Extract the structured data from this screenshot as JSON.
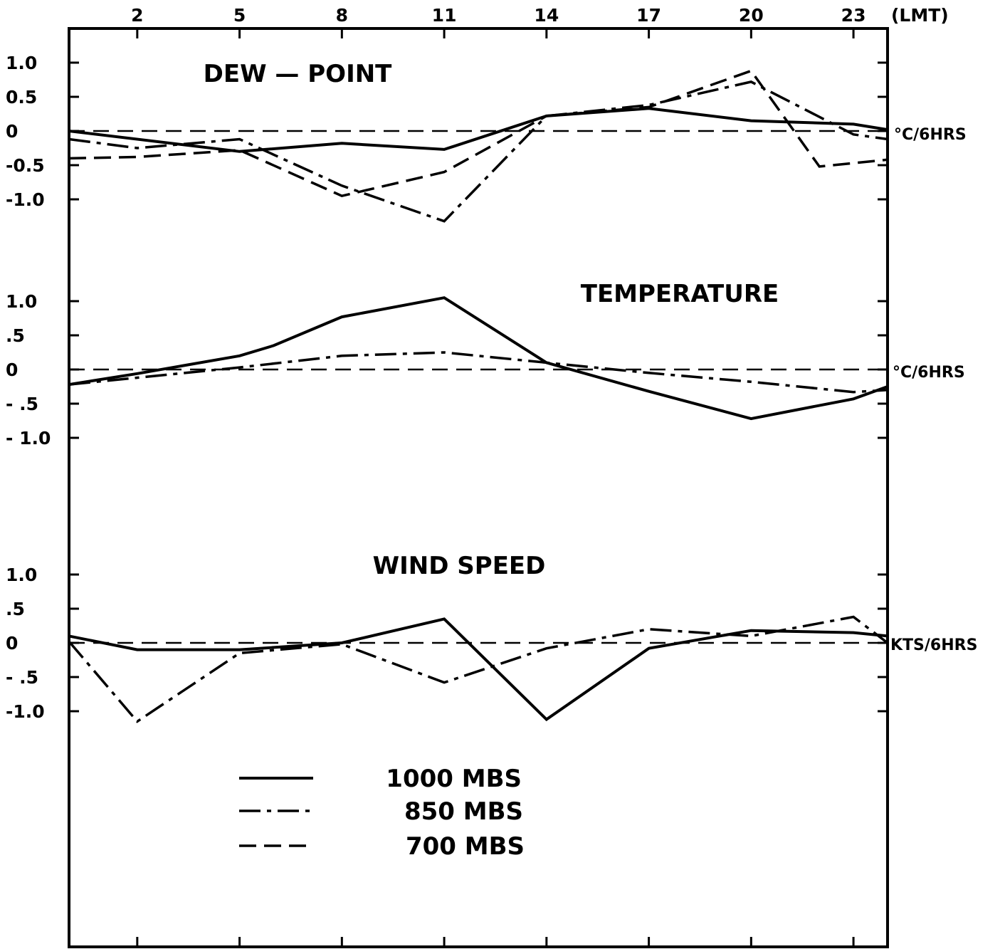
{
  "chart_data": {
    "type": "line",
    "x_axis_label": "(LMT)",
    "x_ticks": [
      2,
      5,
      8,
      11,
      14,
      17,
      20,
      23
    ],
    "x_range": [
      0,
      24
    ],
    "legend": {
      "placement": "bottom-left",
      "entries": [
        {
          "label": "1000  MBS",
          "style": "solid"
        },
        {
          "label": "850  MBS",
          "style": "dash-dot"
        },
        {
          "label": "700  MBS",
          "style": "dashed"
        }
      ]
    },
    "panels": [
      {
        "title": "DEW — POINT",
        "unit": "°C/6HRS",
        "y_range": [
          -1.0,
          1.0
        ],
        "y_ticks": [
          {
            "value": 1.0,
            "label": "1.0"
          },
          {
            "value": 0.5,
            "label": "0.5"
          },
          {
            "value": 0,
            "label": "0"
          },
          {
            "value": -0.5,
            "label": "-0.5"
          },
          {
            "value": -1.0,
            "label": "-1.0"
          }
        ],
        "series": [
          {
            "style": "solid",
            "points": [
              [
                0,
                0.0
              ],
              [
                5,
                -0.3
              ],
              [
                8,
                -0.18
              ],
              [
                11,
                -0.27
              ],
              [
                14,
                0.22
              ],
              [
                17,
                0.33
              ],
              [
                20,
                0.15
              ],
              [
                23,
                0.1
              ],
              [
                24,
                0.02
              ]
            ]
          },
          {
            "style": "dash-dot",
            "points": [
              [
                0,
                -0.12
              ],
              [
                2,
                -0.25
              ],
              [
                5,
                -0.12
              ],
              [
                8,
                -0.8
              ],
              [
                11,
                -1.32
              ],
              [
                14,
                0.22
              ],
              [
                17,
                0.38
              ],
              [
                20,
                0.72
              ],
              [
                23,
                -0.05
              ],
              [
                24,
                -0.12
              ]
            ]
          },
          {
            "style": "dashed",
            "points": [
              [
                0,
                -0.4
              ],
              [
                2,
                -0.38
              ],
              [
                5,
                -0.28
              ],
              [
                8,
                -0.95
              ],
              [
                11,
                -0.6
              ],
              [
                14,
                0.22
              ],
              [
                17,
                0.35
              ],
              [
                20,
                0.88
              ],
              [
                22,
                -0.52
              ],
              [
                24,
                -0.42
              ]
            ]
          }
        ]
      },
      {
        "title": "TEMPERATURE",
        "unit": "°C/6HRS",
        "y_range": [
          -1.0,
          1.0
        ],
        "y_ticks": [
          {
            "value": 1.0,
            "label": "1.0"
          },
          {
            "value": 0.5,
            "label": ".5"
          },
          {
            "value": 0,
            "label": "0"
          },
          {
            "value": -0.5,
            "label": "- .5"
          },
          {
            "value": -1.0,
            "label": "- 1.0"
          }
        ],
        "series": [
          {
            "style": "solid",
            "points": [
              [
                0,
                -0.22
              ],
              [
                2,
                -0.06
              ],
              [
                5,
                0.2
              ],
              [
                6,
                0.35
              ],
              [
                8,
                0.77
              ],
              [
                11,
                1.05
              ],
              [
                14,
                0.1
              ],
              [
                17,
                -0.32
              ],
              [
                20,
                -0.72
              ],
              [
                23,
                -0.43
              ],
              [
                24,
                -0.25
              ]
            ]
          },
          {
            "style": "dash-dot",
            "points": [
              [
                0,
                -0.22
              ],
              [
                5,
                0.03
              ],
              [
                8,
                0.2
              ],
              [
                11,
                0.25
              ],
              [
                14,
                0.1
              ],
              [
                17,
                -0.05
              ],
              [
                20,
                -0.18
              ],
              [
                23,
                -0.33
              ],
              [
                24,
                -0.3
              ]
            ]
          }
        ]
      },
      {
        "title": "WIND  SPEED",
        "unit": "KTS/6HRS",
        "y_range": [
          -1.0,
          1.0
        ],
        "y_ticks": [
          {
            "value": 1.0,
            "label": "1.0"
          },
          {
            "value": 0.5,
            "label": ".5"
          },
          {
            "value": 0,
            "label": "0"
          },
          {
            "value": -0.5,
            "label": "- .5"
          },
          {
            "value": -1.0,
            "label": "-1.0"
          }
        ],
        "series": [
          {
            "style": "solid",
            "points": [
              [
                0,
                0.1
              ],
              [
                2,
                -0.1
              ],
              [
                5,
                -0.1
              ],
              [
                8,
                0.0
              ],
              [
                11,
                0.35
              ],
              [
                14,
                -1.12
              ],
              [
                17,
                -0.08
              ],
              [
                20,
                0.18
              ],
              [
                23,
                0.15
              ],
              [
                24,
                0.1
              ]
            ]
          },
          {
            "style": "dash-dot",
            "points": [
              [
                0,
                0.02
              ],
              [
                2,
                -1.15
              ],
              [
                5,
                -0.15
              ],
              [
                8,
                -0.02
              ],
              [
                11,
                -0.58
              ],
              [
                14,
                -0.08
              ],
              [
                17,
                0.2
              ],
              [
                20,
                0.1
              ],
              [
                23,
                0.38
              ],
              [
                24,
                0.0
              ]
            ]
          }
        ]
      }
    ]
  }
}
